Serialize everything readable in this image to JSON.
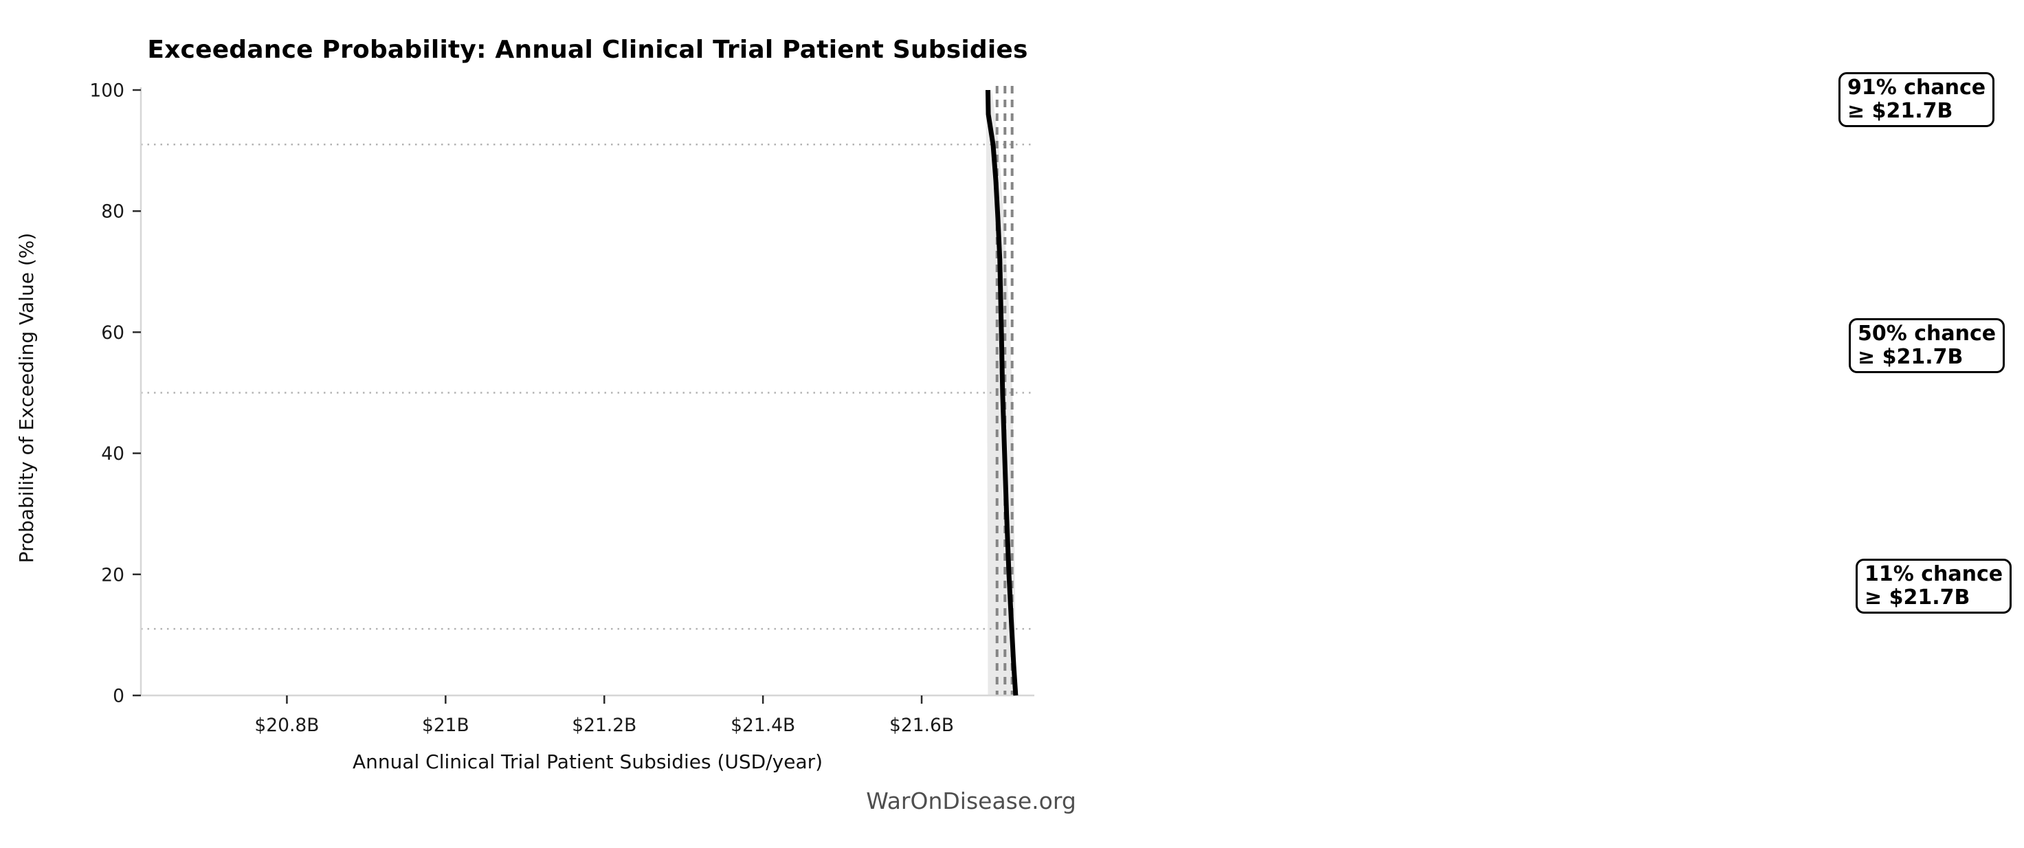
{
  "figure": {
    "footer": "WarOnDisease.org"
  },
  "chart_data": {
    "type": "line",
    "title": "Exceedance Probability: Annual Clinical Trial Patient Subsidies",
    "xlabel": "Annual Clinical Trial Patient Subsidies (USD/year)",
    "ylabel": "Probability of Exceeding Value (%)",
    "x_unit_note": "x values in USD billions per year",
    "xlim": [
      20.616,
      21.742
    ],
    "ylim": [
      0,
      100
    ],
    "grid": "horizontal dotted reference lines only",
    "legend_position": "none",
    "x_ticks": [
      {
        "value": 20.8,
        "label": "$20.8B"
      },
      {
        "value": 21.0,
        "label": "$21B"
      },
      {
        "value": 21.2,
        "label": "$21.2B"
      },
      {
        "value": 21.4,
        "label": "$21.4B"
      },
      {
        "value": 21.6,
        "label": "$21.6B"
      }
    ],
    "y_ticks": [
      {
        "value": 0,
        "label": "0"
      },
      {
        "value": 20,
        "label": "20"
      },
      {
        "value": 40,
        "label": "40"
      },
      {
        "value": 60,
        "label": "60"
      },
      {
        "value": 80,
        "label": "80"
      },
      {
        "value": 100,
        "label": "100"
      }
    ],
    "series": [
      {
        "name": "exceedance-probability-curve",
        "color": "#000000",
        "width": 7,
        "points_value_prob": [
          [
            21.6835,
            100
          ],
          [
            21.684,
            96
          ],
          [
            21.69,
            91
          ],
          [
            21.6935,
            85
          ],
          [
            21.696,
            79
          ],
          [
            21.6985,
            72
          ],
          [
            21.7005,
            60
          ],
          [
            21.702,
            50
          ],
          [
            21.7045,
            40
          ],
          [
            21.707,
            30
          ],
          [
            21.71,
            20
          ],
          [
            21.7135,
            11
          ],
          [
            21.716,
            5
          ],
          [
            21.7175,
            2
          ],
          [
            21.7185,
            0
          ]
        ]
      }
    ],
    "confidence_band": {
      "color": "#e9e9e9",
      "left_boundary_value_prob": [
        [
          21.681,
          100
        ],
        [
          21.682,
          60
        ],
        [
          21.683,
          30
        ],
        [
          21.6835,
          0
        ]
      ],
      "right_boundary_value_prob": [
        [
          21.6885,
          100
        ],
        [
          21.697,
          91
        ],
        [
          21.704,
          78
        ],
        [
          21.71,
          64
        ],
        [
          21.7145,
          50
        ],
        [
          21.716,
          38
        ],
        [
          21.7175,
          20
        ],
        [
          21.7185,
          0
        ]
      ]
    },
    "percentile_vlines": {
      "values": [
        21.695,
        21.705,
        21.714
      ],
      "color": "#858585"
    },
    "reference_hlines": {
      "percents": [
        91,
        50,
        11
      ],
      "color": "#b3b3b3"
    },
    "annotations": [
      {
        "line1": "91% chance",
        "line2": "≥ $21.7B",
        "box_left": 2675,
        "box_top": 105
      },
      {
        "line1": "50% chance",
        "line2": "≥ $21.7B",
        "box_left": 2690,
        "box_top": 463
      },
      {
        "line1": "11% chance",
        "line2": "≥ $21.7B",
        "box_left": 2700,
        "box_top": 813
      }
    ]
  }
}
